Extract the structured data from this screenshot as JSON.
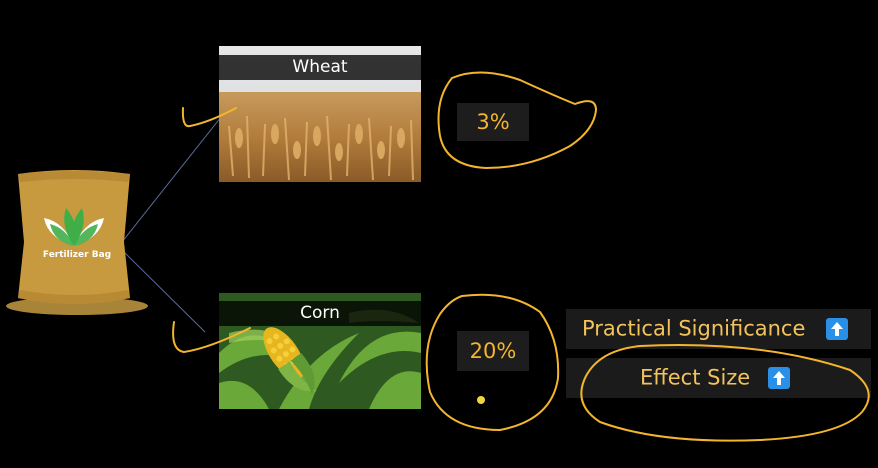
{
  "bag": {
    "label": "Fertilizer Bag"
  },
  "crops": [
    {
      "name": "Wheat",
      "percent": "3%"
    },
    {
      "name": "Corn",
      "percent": "20%"
    }
  ],
  "significance": {
    "practical_label": "Practical Significance",
    "effect_label": "Effect Size"
  },
  "colors": {
    "background": "#000000",
    "annotation": "#f2b52d",
    "highlight_text": "#f2c35c",
    "arrow_badge": "#2a8fe6"
  },
  "icons": [
    "up-arrow-icon",
    "leaf-logo-icon"
  ]
}
